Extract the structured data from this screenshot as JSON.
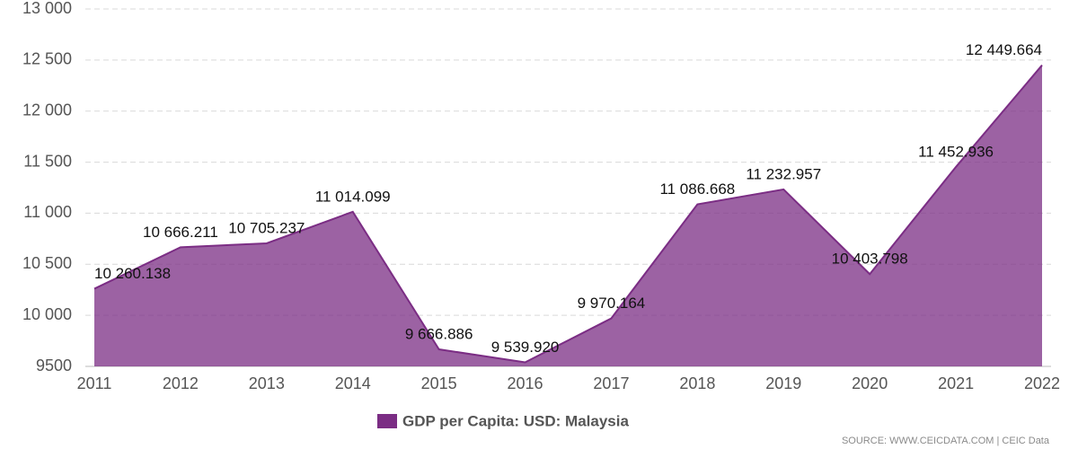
{
  "chart_data": {
    "type": "area",
    "categories": [
      "2011",
      "2012",
      "2013",
      "2014",
      "2015",
      "2016",
      "2017",
      "2018",
      "2019",
      "2020",
      "2021",
      "2022"
    ],
    "series": [
      {
        "name": "GDP per Capita: USD: Malaysia",
        "color": "#7b2d84",
        "values": [
          10260.138,
          10666.211,
          10705.237,
          11014.099,
          9666.886,
          9539.92,
          9970.164,
          11086.668,
          11232.957,
          10403.798,
          11452.936,
          12449.664
        ],
        "value_labels": [
          "10 260.138",
          "10 666.211",
          "10 705.237",
          "11 014.099",
          "9 666.886",
          "9 539.920",
          "9 970.164",
          "11 086.668",
          "11 232.957",
          "10 403.798",
          "11 452.936",
          "12 449.664"
        ]
      }
    ],
    "ylim": [
      9500,
      13000
    ],
    "yticks": [
      9500,
      {
        "value": 10000,
        "label": "10 000"
      },
      {
        "value": 10500,
        "label": "10 500"
      },
      {
        "value": 11000,
        "label": "11 000"
      },
      {
        "value": 11500,
        "label": "11 500"
      },
      {
        "value": 12000,
        "label": "12 000"
      },
      {
        "value": 12500,
        "label": "12 500"
      },
      {
        "value": 13000,
        "label": "13 000"
      }
    ],
    "grid": true,
    "source": "SOURCE: WWW.CEICDATA.COM | CEIC Data"
  }
}
